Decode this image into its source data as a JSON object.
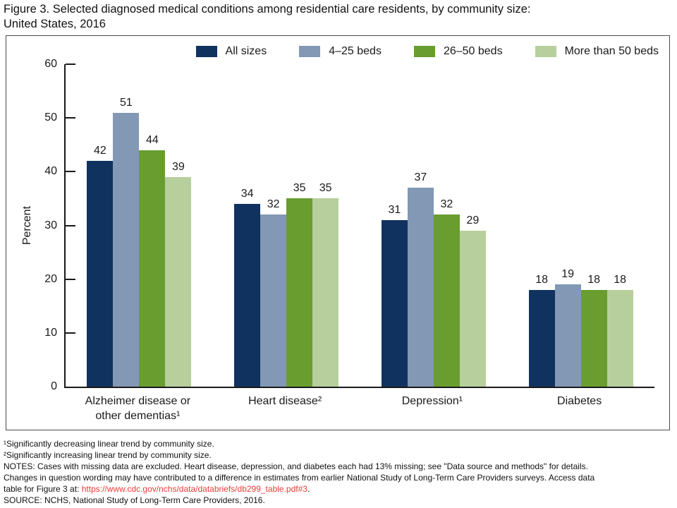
{
  "title": {
    "line1": "Figure 3. Selected diagnosed medical conditions among residential care residents, by community size:",
    "line2": "United States, 2016"
  },
  "chart_data": {
    "type": "bar",
    "title": "Selected diagnosed medical conditions among residential care residents, by community size: United States, 2016",
    "xlabel": "",
    "ylabel": "Percent",
    "ylim": [
      0,
      60
    ],
    "ytick_step": 10,
    "grid": false,
    "legend_position": "top",
    "categories": [
      [
        "Alzheimer disease or",
        "other dementias¹"
      ],
      [
        "Heart disease²"
      ],
      [
        "Depression¹"
      ],
      [
        "Diabetes"
      ]
    ],
    "series": [
      {
        "name": "All sizes",
        "color": "#10325e",
        "values": [
          42,
          34,
          31,
          18
        ]
      },
      {
        "name": "4–25 beds",
        "color": "#8298b4",
        "values": [
          51,
          32,
          37,
          19
        ]
      },
      {
        "name": "26–50 beds",
        "color": "#699d30",
        "values": [
          44,
          35,
          32,
          18
        ]
      },
      {
        "name": "More than 50 beds",
        "color": "#b7cf9c",
        "values": [
          39,
          35,
          29,
          18
        ]
      }
    ]
  },
  "footnotes": {
    "fn1": "¹Significantly decreasing linear trend by community size.",
    "fn2": "²Significantly increasing linear trend by community size.",
    "notes_line1": "NOTES: Cases with missing data are excluded. Heart disease, depression, and diabetes each had 13% missing; see \"Data source and methods\" for details.",
    "notes_line2": "Changes in question wording may have contributed to a difference in estimates from earlier National Study of Long-Term Care Providers surveys. Access data",
    "notes_line3_prefix": "table for Figure 3 at: ",
    "link_text": "https://www.cdc.gov/nchs/data/databriefs/db299_table.pdf#3",
    "notes_line3_suffix": ".",
    "source": "SOURCE: NCHS, National Study of Long-Term Care Providers, 2016."
  },
  "ui_colors": {
    "link": "#ee3c38",
    "axis": "#1a1a1a",
    "frame_border": "#4c4c4c"
  }
}
